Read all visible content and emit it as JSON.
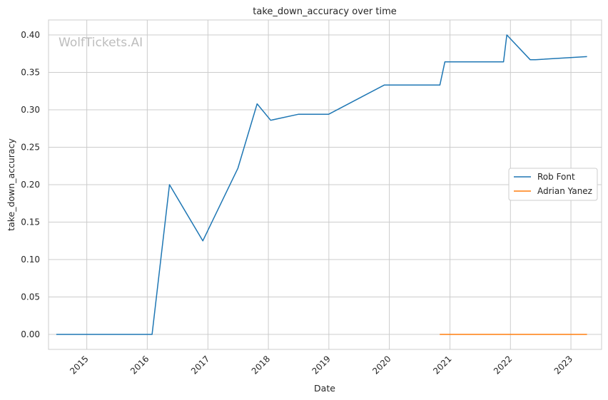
{
  "chart_data": {
    "type": "line",
    "title": "take_down_accuracy over time",
    "xlabel": "Date",
    "ylabel": "take_down_accuracy",
    "watermark": "WolfTickets.AI",
    "x_ticks": [
      "2015",
      "2016",
      "2017",
      "2018",
      "2019",
      "2020",
      "2021",
      "2022",
      "2023"
    ],
    "y_ticks": [
      "0.00",
      "0.05",
      "0.10",
      "0.15",
      "0.20",
      "0.25",
      "0.30",
      "0.35",
      "0.40"
    ],
    "xlim": [
      "2014-05-15",
      "2023-07-05"
    ],
    "ylim": [
      -0.02,
      0.42
    ],
    "grid": true,
    "legend_position": "center-right",
    "series": [
      {
        "name": "Rob Font",
        "color": "#1f77b4",
        "points": [
          [
            "2014-07-01",
            0.0
          ],
          [
            "2016-01-30",
            0.0
          ],
          [
            "2016-05-14",
            0.2
          ],
          [
            "2016-12-01",
            0.125
          ],
          [
            "2017-07-01",
            0.222
          ],
          [
            "2017-10-25",
            0.308
          ],
          [
            "2018-01-15",
            0.286
          ],
          [
            "2018-06-30",
            0.294
          ],
          [
            "2018-12-30",
            0.294
          ],
          [
            "2019-12-01",
            0.333
          ],
          [
            "2020-11-01",
            0.333
          ],
          [
            "2020-12-01",
            0.364
          ],
          [
            "2021-11-20",
            0.364
          ],
          [
            "2021-12-10",
            0.4
          ],
          [
            "2022-04-30",
            0.367
          ],
          [
            "2022-06-01",
            0.367
          ],
          [
            "2023-04-08",
            0.371
          ]
        ]
      },
      {
        "name": "Adrian Yanez",
        "color": "#ff7f0e",
        "points": [
          [
            "2020-10-31",
            0.0
          ],
          [
            "2023-04-08",
            0.0
          ]
        ]
      }
    ]
  }
}
